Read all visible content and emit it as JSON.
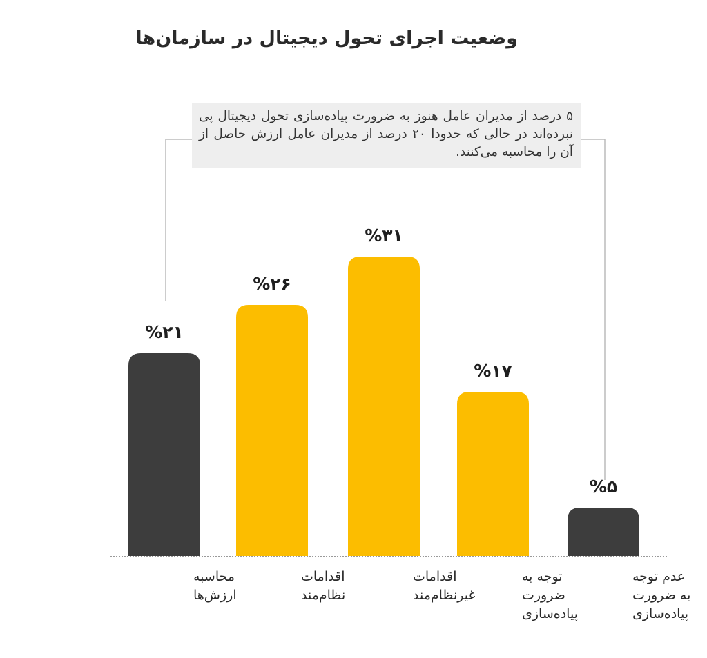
{
  "chart_data": {
    "type": "bar",
    "title": "وضعیت اجرای تحول دیجیتال در سازمان‌ها",
    "categories": [
      "محاسبه ارزش‌ها",
      "اقدامات نظام‌مند",
      "اقدامات غیرنظام‌مند",
      "توجه به ضرورت پیاده‌سازی",
      "عدم توجه به ضرورت پیاده‌سازی"
    ],
    "category_lines": [
      [
        "محاسبه",
        "ارزش‌ها"
      ],
      [
        "اقدامات",
        "نظام‌مند"
      ],
      [
        "اقدامات",
        "غیرنظام‌مند"
      ],
      [
        "توجه به",
        "ضرورت",
        "پیاده‌سازی"
      ],
      [
        "عدم توجه",
        "به ضرورت",
        "پیاده‌سازی"
      ]
    ],
    "values": [
      21,
      26,
      31,
      17,
      5
    ],
    "value_labels": [
      "%۲۱",
      "%۲۶",
      "%۳۱",
      "%۱۷",
      "%۵"
    ],
    "bar_colors": [
      "#3d3d3d",
      "#fcbd00",
      "#fcbd00",
      "#fcbd00",
      "#3d3d3d"
    ],
    "annotation": "۵ درصد از مدیران عامل هنوز به ضرورت پیاده‌سازی تحول دیجیتال پی نبرده‌اند در حالی که حدودا ۲۰ درصد از مدیران عامل ارزش حاصل از آن را محاسبه می‌کنند.",
    "xlabel": "",
    "ylabel": "",
    "ylim": [
      0,
      31
    ],
    "grid": false,
    "legend": "none"
  },
  "colors": {
    "accent_yellow": "#fcbd00",
    "dark_gray": "#3d3d3d",
    "annotation_background": "#eeeeee",
    "connector_line": "#bbbbbb",
    "baseline": "#999999"
  }
}
